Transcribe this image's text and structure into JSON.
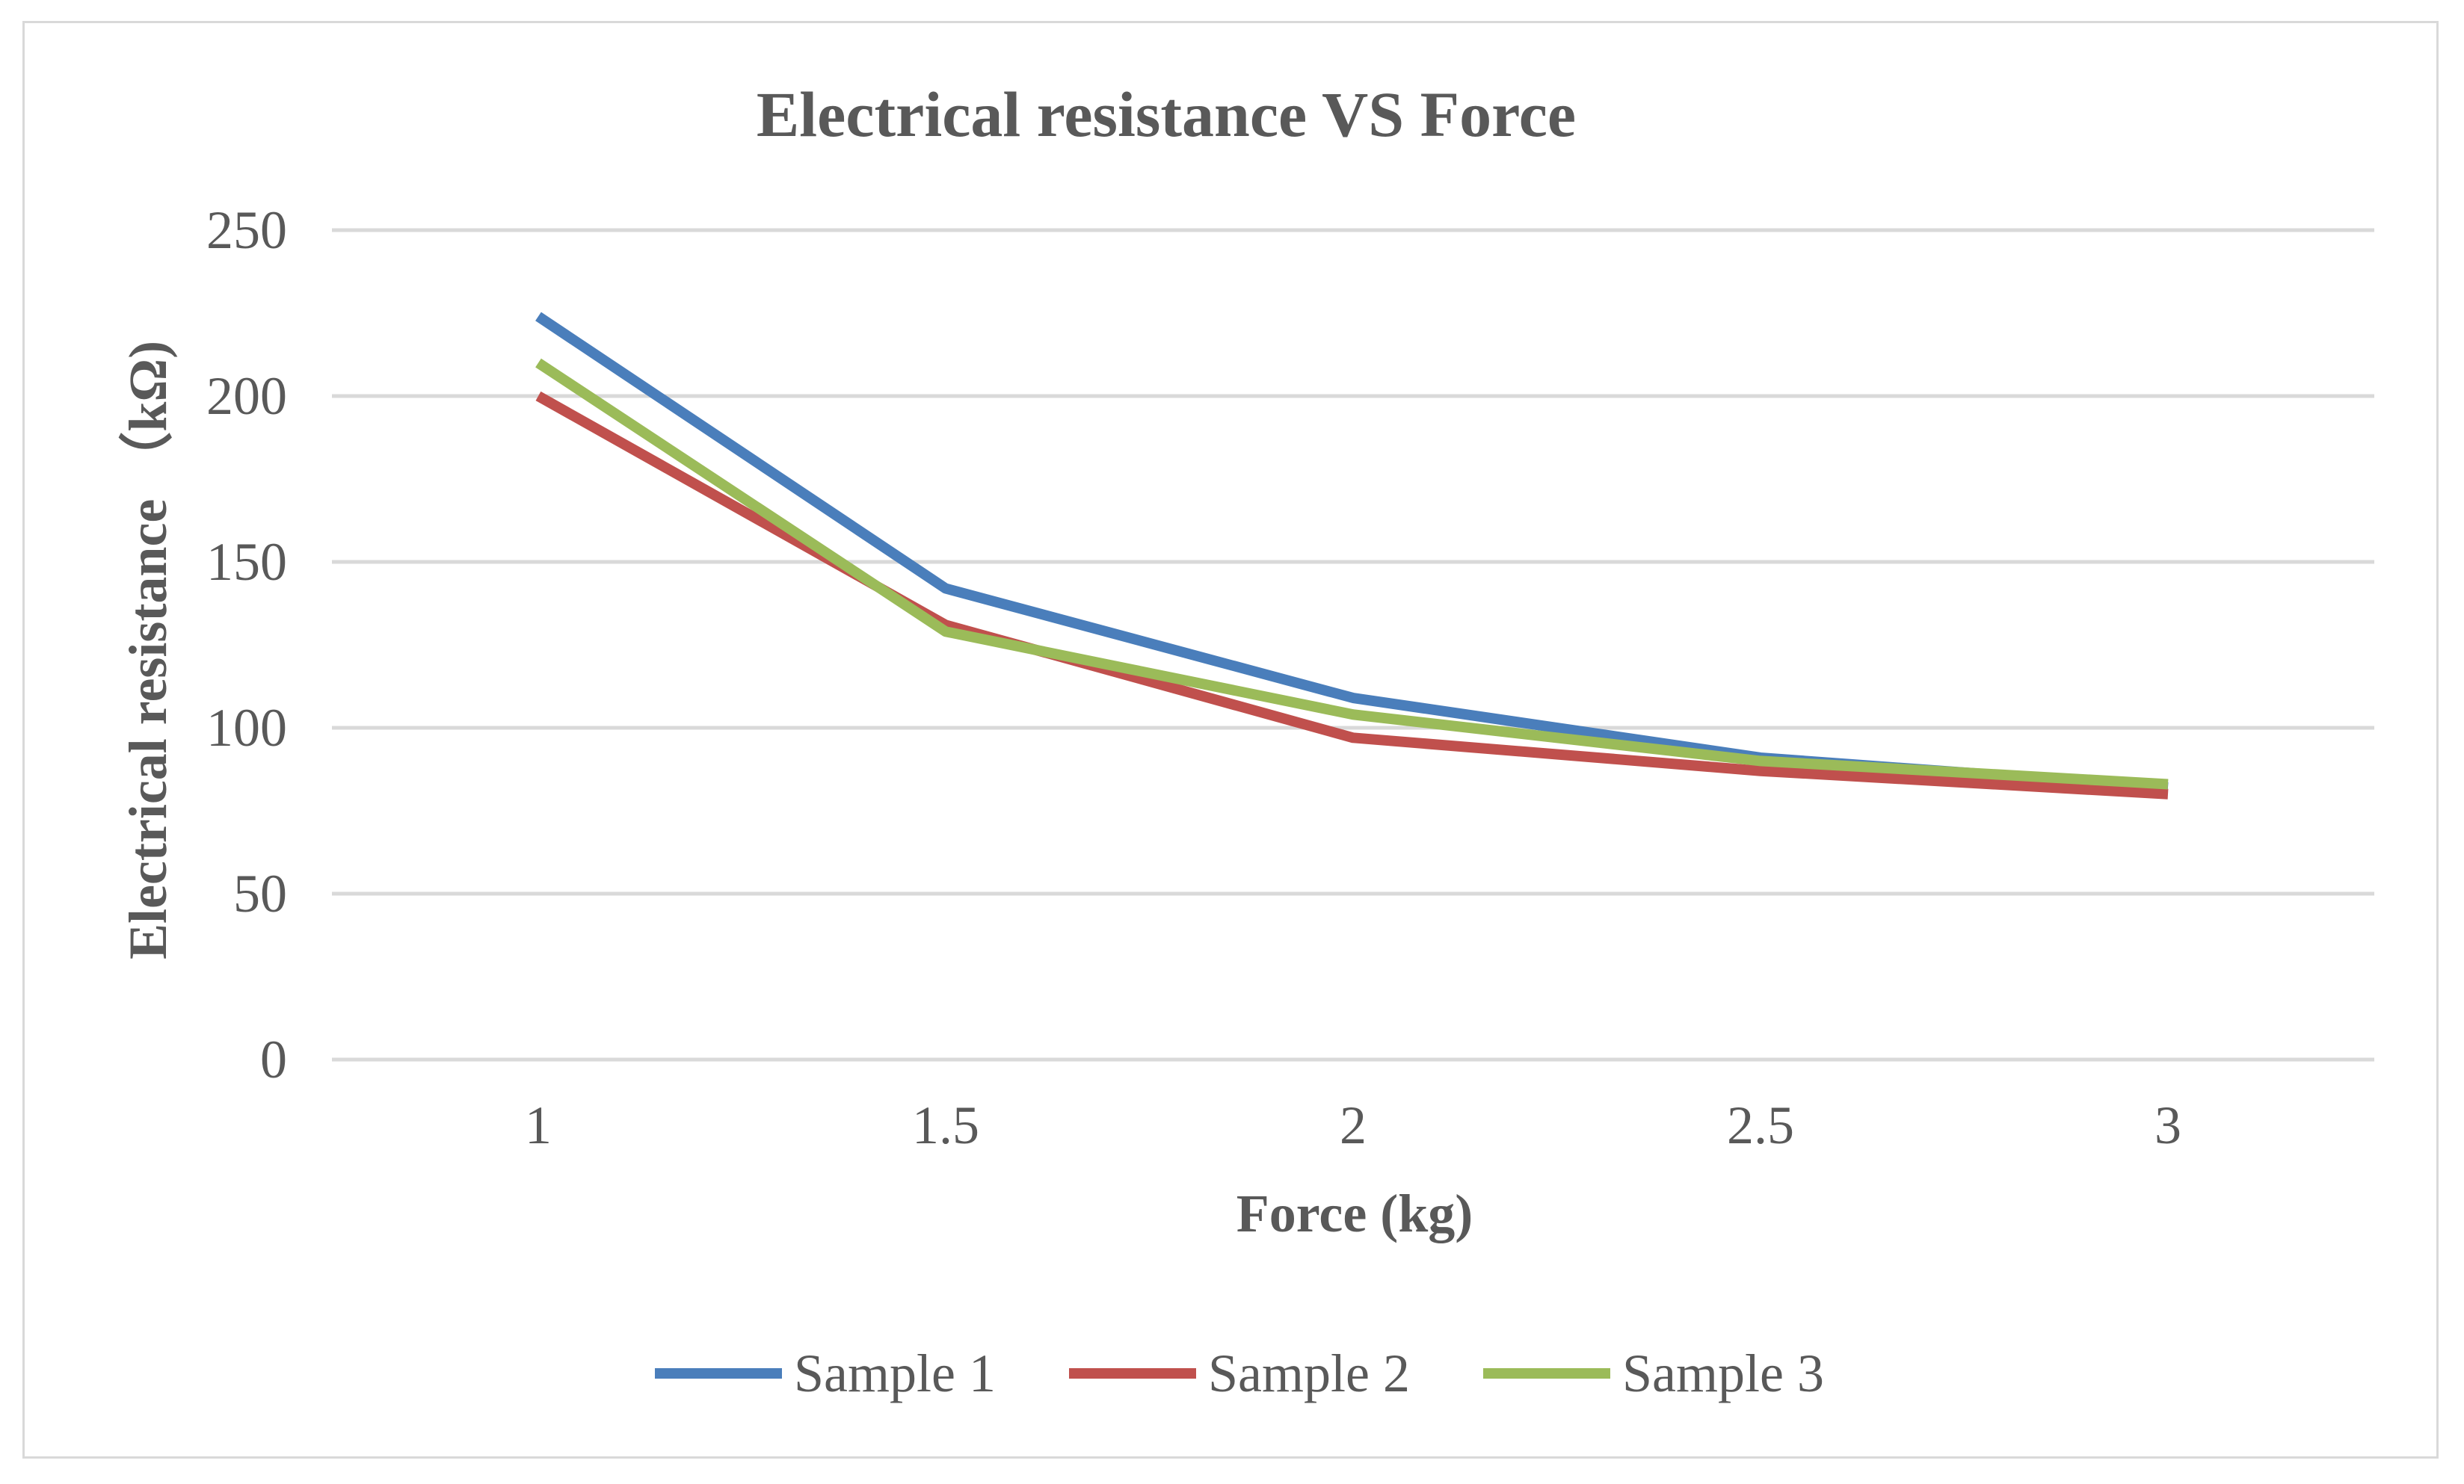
{
  "chart_data": {
    "type": "line",
    "title": "Electrical resistance VS Force",
    "xlabel": "Force (kg)",
    "ylabel": "Electrical resistance （kΩ)",
    "x": [
      1,
      1.5,
      2,
      2.5,
      3
    ],
    "x_tick_labels": [
      "1",
      "1.5",
      "2",
      "2.5",
      "3"
    ],
    "ylim": [
      0,
      250
    ],
    "y_ticks": [
      0,
      50,
      100,
      150,
      200,
      250
    ],
    "grid": true,
    "legend_position": "bottom",
    "series": [
      {
        "name": "Sample 1",
        "color": "#4a7ebb",
        "values": [
          224,
          142,
          109,
          91,
          82
        ]
      },
      {
        "name": "Sample 2",
        "color": "#c0504d",
        "values": [
          200,
          131,
          97,
          87,
          80
        ]
      },
      {
        "name": "Sample 3",
        "color": "#9bbb59",
        "values": [
          210,
          129,
          104,
          90,
          83
        ]
      }
    ]
  },
  "colors": {
    "text": "#595959",
    "gridline": "#d9d9d9",
    "frame": "#d9d9d9"
  }
}
